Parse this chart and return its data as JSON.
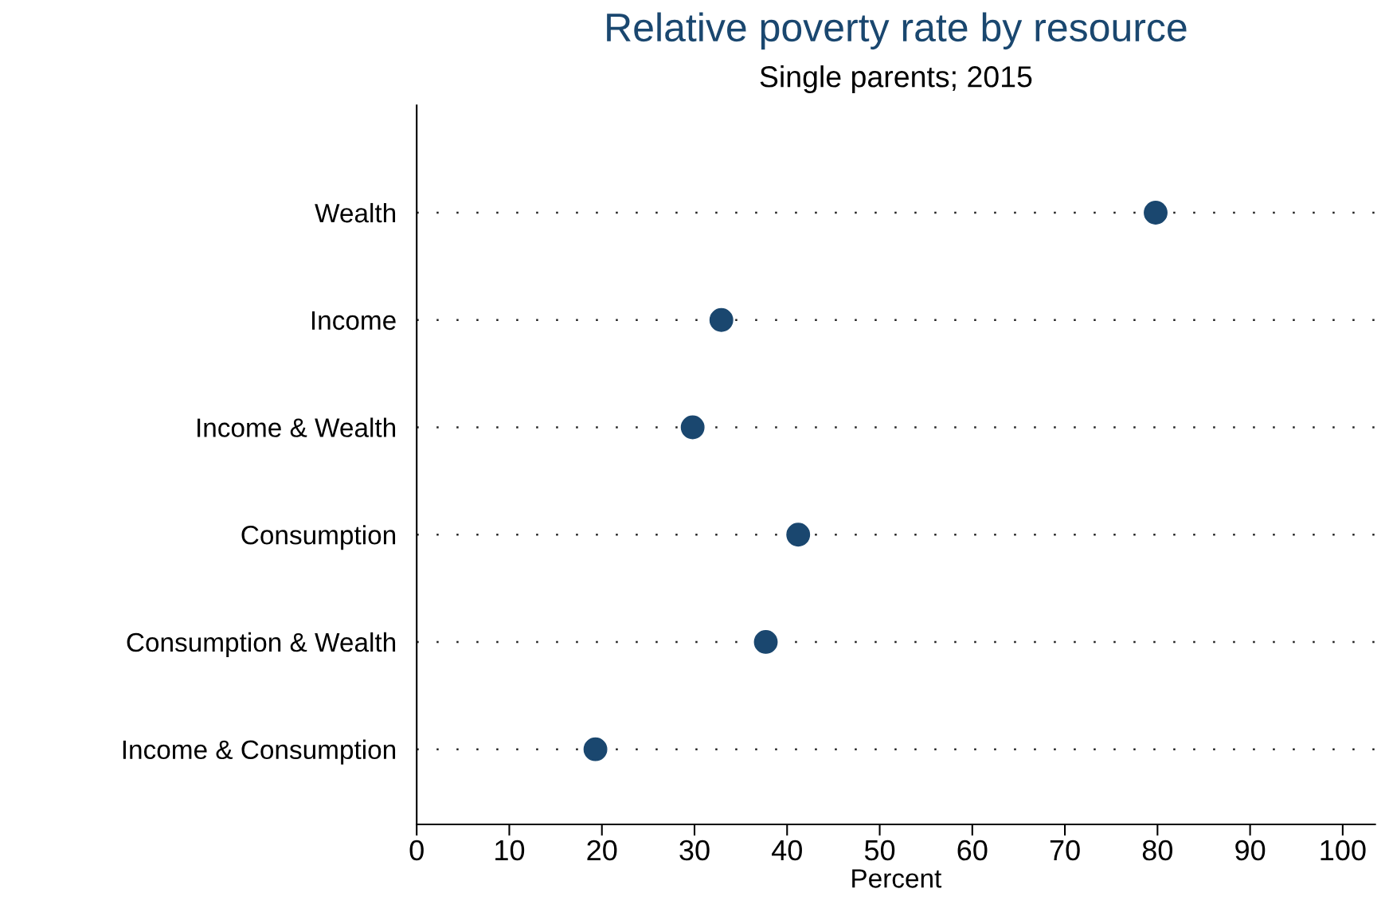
{
  "chart_data": {
    "type": "scatter",
    "orientation": "horizontal",
    "title": "Relative poverty rate by resource",
    "subtitle": "Single parents; 2015",
    "xlabel": "Percent",
    "categories": [
      "Wealth",
      "Income",
      "Income & Wealth",
      "Consumption",
      "Consumption & Wealth",
      "Income & Consumption"
    ],
    "series": [
      {
        "color": "#1a476f",
        "values": [
          79.8,
          32.9,
          29.8,
          41.2,
          37.7,
          19.3
        ]
      }
    ],
    "xlim": [
      0,
      103.5
    ],
    "xticks": [
      0,
      10,
      20,
      30,
      40,
      50,
      60,
      70,
      80,
      90,
      100
    ],
    "grid": "y",
    "marker": "circle"
  }
}
